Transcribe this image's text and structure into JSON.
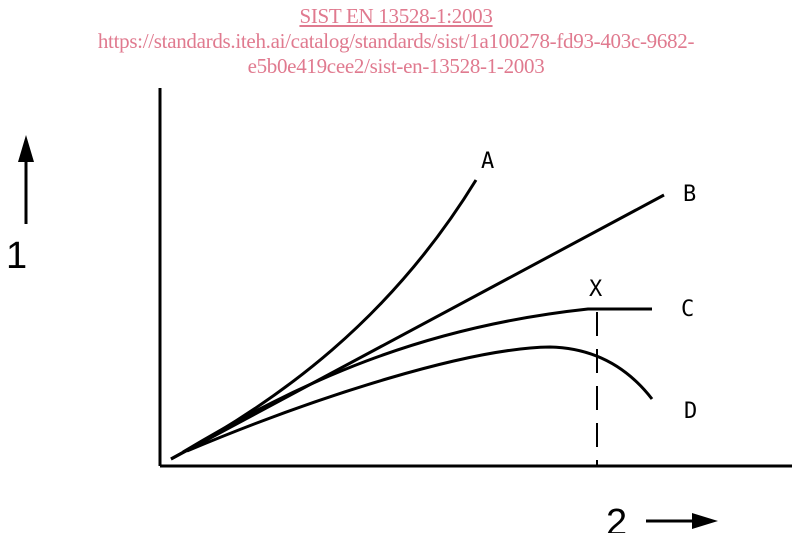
{
  "watermark": {
    "title": "SIST EN 13528-1:2003",
    "url_line1": "https://standards.iteh.ai/catalog/standards/sist/1a100278-fd93-403c-9682-",
    "url_line2": "e5b0e419cee2/sist-en-13528-1-2003"
  },
  "figure": {
    "y_axis_label": "1",
    "x_axis_label": "2",
    "curves": [
      {
        "id": "A",
        "label": "A"
      },
      {
        "id": "B",
        "label": "B"
      },
      {
        "id": "C",
        "label": "C"
      },
      {
        "id": "D",
        "label": "D"
      }
    ],
    "marker_label": "X",
    "colors": {
      "lines": "#000000",
      "watermark": "#e07a8f"
    }
  }
}
